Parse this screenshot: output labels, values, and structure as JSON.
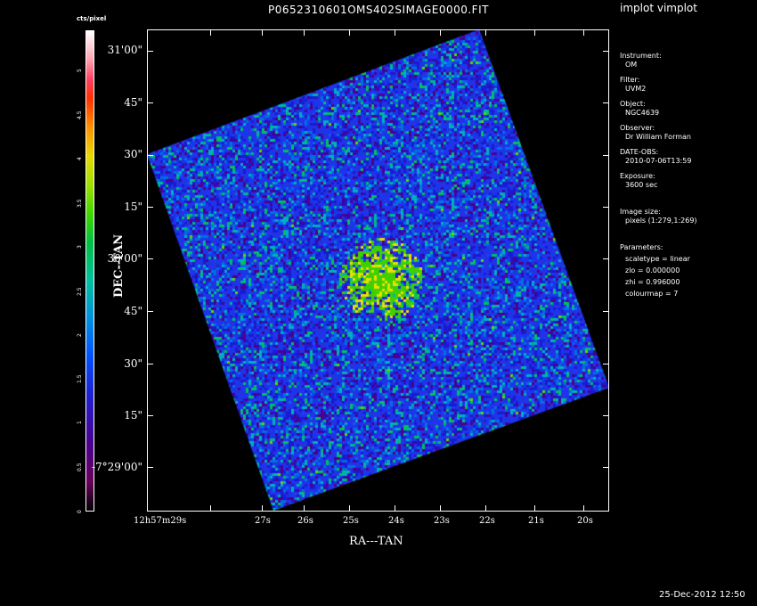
{
  "title": "P0652310601OMS402SIMAGE0000.FIT",
  "tool": "implot vimplot",
  "footer_date": "25-Dec-2012 12:50",
  "colorbar": {
    "unit": "cts/pixel",
    "ticks": [
      "0",
      "0.5",
      "1",
      "1.5",
      "2",
      "2.5",
      "3",
      "3.5",
      "4",
      "4.5",
      "5"
    ]
  },
  "axes": {
    "y_label": "DEC--TAN",
    "x_label": "RA---TAN",
    "dec_ticks": [
      "31'00\"",
      "45\"",
      "30\"",
      "15\"",
      "30'00\"",
      "45\"",
      "30\"",
      "15\"",
      "-7°29'00\""
    ],
    "ra_ticks": [
      "12h57m29s",
      "27s",
      "26s",
      "25s",
      "24s",
      "23s",
      "22s",
      "21s",
      "20s"
    ]
  },
  "info": {
    "instrument_label": "Instrument:",
    "instrument": "OM",
    "filter_label": "Filter:",
    "filter": "UVM2",
    "object_label": "Object:",
    "object": "NGC4639",
    "observer_label": "Observer:",
    "observer": "Dr William Forman",
    "date_label": "DATE-OBS:",
    "date": "2010-07-06T13:59",
    "exposure_label": "Exposure:",
    "exposure": "3600 sec",
    "image_size_label": "Image size:",
    "image_size": "pixels (1:279,1:269)",
    "parameters_label": "Parameters:",
    "scaletype": "scaletype = linear",
    "zlo": "zlo = 0.000000",
    "zhi": "zhi = 0.996000",
    "colourmap": "colourmap = 7"
  },
  "colors": {
    "background": "#000000",
    "foreground": "#ffffff",
    "noise_base": "#1a30e0"
  }
}
